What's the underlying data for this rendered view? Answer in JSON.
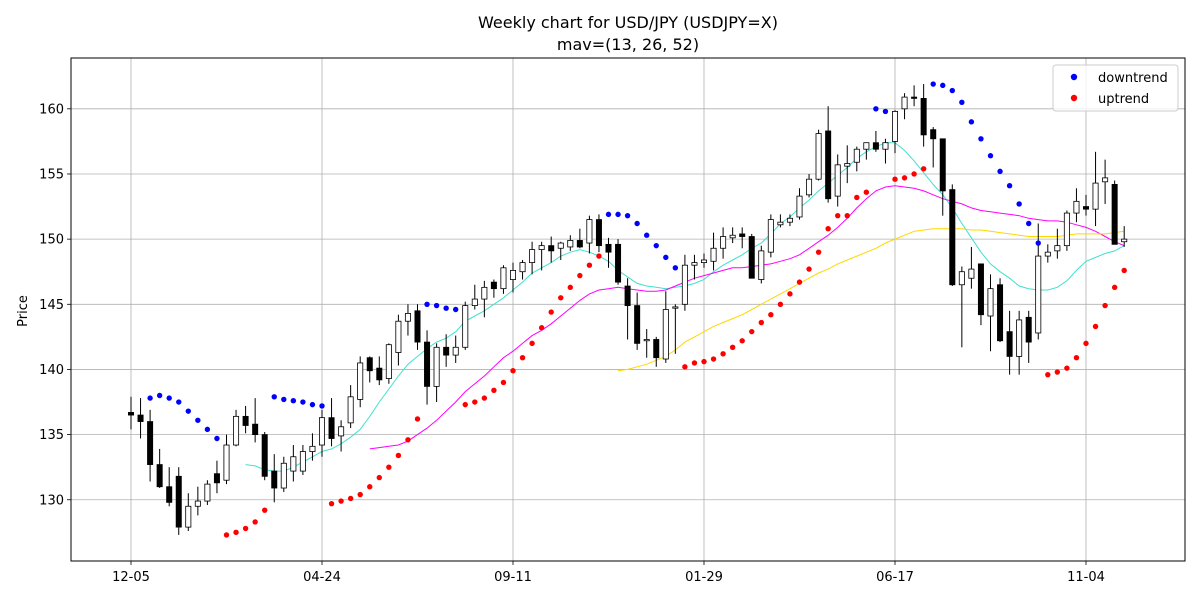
{
  "chart_data": {
    "type": "candlestick",
    "title": "Weekly chart for USD/JPY (USDJPY=X)",
    "subtitle": "mav=(13, 26, 52)",
    "ylabel": "Price",
    "ylim": [
      125.3,
      163.9
    ],
    "yticks": [
      130,
      135,
      140,
      145,
      150,
      155,
      160
    ],
    "xtick_labels": [
      "12-05",
      "04-24",
      "09-11",
      "01-29",
      "06-17",
      "11-04"
    ],
    "xtick_indices": [
      0,
      20,
      40,
      60,
      80,
      100
    ],
    "grid": true,
    "legend_position": "top-right",
    "legend": [
      {
        "label": "downtrend",
        "color": "#0000ff"
      },
      {
        "label": "uptrend",
        "color": "#ff0000"
      }
    ],
    "colors": {
      "up": "#ffffff",
      "down": "#000000",
      "mav13": "#40e0d0",
      "mav26": "#ff00ff",
      "mav52": "#ffd700"
    },
    "candles": [
      [
        136.7,
        137.9,
        135.4,
        136.5
      ],
      [
        136.5,
        137.8,
        134.7,
        136.0
      ],
      [
        136.0,
        136.9,
        131.4,
        132.7
      ],
      [
        132.7,
        133.9,
        130.9,
        131.0
      ],
      [
        131.0,
        132.5,
        129.5,
        129.8
      ],
      [
        131.8,
        132.5,
        127.3,
        127.9
      ],
      [
        127.9,
        130.5,
        127.6,
        129.5
      ],
      [
        129.5,
        131.0,
        128.8,
        129.9
      ],
      [
        129.9,
        131.5,
        129.6,
        131.2
      ],
      [
        132.0,
        133.0,
        130.5,
        131.3
      ],
      [
        131.5,
        135.0,
        131.2,
        134.2
      ],
      [
        134.2,
        136.9,
        134.1,
        136.4
      ],
      [
        136.4,
        137.2,
        135.1,
        135.7
      ],
      [
        135.8,
        137.8,
        134.4,
        135.0
      ],
      [
        135.0,
        135.2,
        131.5,
        131.8
      ],
      [
        132.2,
        133.5,
        129.8,
        130.9
      ],
      [
        130.9,
        133.3,
        130.6,
        132.8
      ],
      [
        132.2,
        134.2,
        131.4,
        133.3
      ],
      [
        132.2,
        134.2,
        131.9,
        133.7
      ],
      [
        133.7,
        135.1,
        133.0,
        134.1
      ],
      [
        134.2,
        136.9,
        133.3,
        136.3
      ],
      [
        136.3,
        137.8,
        134.1,
        134.7
      ],
      [
        134.9,
        136.1,
        133.7,
        135.6
      ],
      [
        135.9,
        138.8,
        135.5,
        137.9
      ],
      [
        137.7,
        141.0,
        137.1,
        140.5
      ],
      [
        140.9,
        141.0,
        139.0,
        139.9
      ],
      [
        140.1,
        141.0,
        138.8,
        139.2
      ],
      [
        139.3,
        142.0,
        138.9,
        141.9
      ],
      [
        141.3,
        144.2,
        140.3,
        143.7
      ],
      [
        143.7,
        145.0,
        142.6,
        144.3
      ],
      [
        144.5,
        145.0,
        141.5,
        142.1
      ],
      [
        142.1,
        143.0,
        137.3,
        138.7
      ],
      [
        138.7,
        142.0,
        137.5,
        141.7
      ],
      [
        141.7,
        142.7,
        140.2,
        141.1
      ],
      [
        141.1,
        142.6,
        140.5,
        141.7
      ],
      [
        141.7,
        145.2,
        141.5,
        144.9
      ],
      [
        144.9,
        146.5,
        144.6,
        145.4
      ],
      [
        145.4,
        146.8,
        144.0,
        146.3
      ],
      [
        146.7,
        146.9,
        145.5,
        146.2
      ],
      [
        146.2,
        148.0,
        145.8,
        147.8
      ],
      [
        146.9,
        148.2,
        145.9,
        147.6
      ],
      [
        147.5,
        148.4,
        146.9,
        148.2
      ],
      [
        148.2,
        149.8,
        147.3,
        149.2
      ],
      [
        149.2,
        149.8,
        147.6,
        149.5
      ],
      [
        149.5,
        150.2,
        148.2,
        149.1
      ],
      [
        149.3,
        149.8,
        148.4,
        149.7
      ],
      [
        149.4,
        150.3,
        149.1,
        149.9
      ],
      [
        149.9,
        150.8,
        149.3,
        149.4
      ],
      [
        149.7,
        151.8,
        148.9,
        151.5
      ],
      [
        151.5,
        151.9,
        149.0,
        149.5
      ],
      [
        149.6,
        150.1,
        147.8,
        149.0
      ],
      [
        149.6,
        150.0,
        146.5,
        146.7
      ],
      [
        146.4,
        147.0,
        142.3,
        144.9
      ],
      [
        144.9,
        145.9,
        141.5,
        142.0
      ],
      [
        142.2,
        143.1,
        140.9,
        142.3
      ],
      [
        142.3,
        142.5,
        140.2,
        140.9
      ],
      [
        140.8,
        146.0,
        140.5,
        144.6
      ],
      [
        144.7,
        145.0,
        141.2,
        144.8
      ],
      [
        145.0,
        148.8,
        144.5,
        148.0
      ],
      [
        148.0,
        148.8,
        146.9,
        148.2
      ],
      [
        148.2,
        148.9,
        147.8,
        148.4
      ],
      [
        148.3,
        150.5,
        147.6,
        149.3
      ],
      [
        149.3,
        150.9,
        148.5,
        150.2
      ],
      [
        150.1,
        150.9,
        149.7,
        150.3
      ],
      [
        150.4,
        150.9,
        149.3,
        150.2
      ],
      [
        150.2,
        150.4,
        147.0,
        147.0
      ],
      [
        146.9,
        149.5,
        146.6,
        149.1
      ],
      [
        149.0,
        151.9,
        148.6,
        151.5
      ],
      [
        151.1,
        151.9,
        150.9,
        151.3
      ],
      [
        151.3,
        151.9,
        151.0,
        151.6
      ],
      [
        151.7,
        153.9,
        151.5,
        153.3
      ],
      [
        153.4,
        155.0,
        153.2,
        154.6
      ],
      [
        154.6,
        158.4,
        154.5,
        158.1
      ],
      [
        158.3,
        160.2,
        152.8,
        153.1
      ],
      [
        153.3,
        156.5,
        152.5,
        155.7
      ],
      [
        155.6,
        157.2,
        154.3,
        155.8
      ],
      [
        155.9,
        157.1,
        155.2,
        156.9
      ],
      [
        156.9,
        157.3,
        156.1,
        157.4
      ],
      [
        157.4,
        158.3,
        156.7,
        156.9
      ],
      [
        156.9,
        157.7,
        155.8,
        157.4
      ],
      [
        157.5,
        159.9,
        156.6,
        159.8
      ],
      [
        160.0,
        161.2,
        159.2,
        160.9
      ],
      [
        160.9,
        161.8,
        160.2,
        160.8
      ],
      [
        160.8,
        161.9,
        157.1,
        158.0
      ],
      [
        158.4,
        158.6,
        155.5,
        157.7
      ],
      [
        157.7,
        157.7,
        151.8,
        153.7
      ],
      [
        153.8,
        154.2,
        146.4,
        146.5
      ],
      [
        146.5,
        147.9,
        141.7,
        147.5
      ],
      [
        147.0,
        149.4,
        146.2,
        147.7
      ],
      [
        148.1,
        148.1,
        143.4,
        144.2
      ],
      [
        144.1,
        147.3,
        141.4,
        146.2
      ],
      [
        146.5,
        147.0,
        142.1,
        142.2
      ],
      [
        142.9,
        144.5,
        139.6,
        141.0
      ],
      [
        141.0,
        144.5,
        139.6,
        143.8
      ],
      [
        144.0,
        144.5,
        140.5,
        142.1
      ],
      [
        142.8,
        151.2,
        142.3,
        148.7
      ],
      [
        148.7,
        149.6,
        148.2,
        149.0
      ],
      [
        149.1,
        150.8,
        148.5,
        149.5
      ],
      [
        149.5,
        152.2,
        149.1,
        152.0
      ],
      [
        152.0,
        153.9,
        151.3,
        152.9
      ],
      [
        152.5,
        153.4,
        151.8,
        152.3
      ],
      [
        152.3,
        156.7,
        151.0,
        154.3
      ],
      [
        154.4,
        156.1,
        152.7,
        154.7
      ],
      [
        154.2,
        154.5,
        149.6,
        149.6
      ],
      [
        149.8,
        151.0,
        149.4,
        150.0
      ]
    ],
    "mav13": [
      null,
      null,
      null,
      null,
      null,
      null,
      null,
      null,
      null,
      null,
      null,
      null,
      132.7,
      132.6,
      132.3,
      132.2,
      132.2,
      132.5,
      132.9,
      133.3,
      133.7,
      133.9,
      134.3,
      134.8,
      135.4,
      136.4,
      137.5,
      138.5,
      139.5,
      140.4,
      141.0,
      141.6,
      142.1,
      142.4,
      142.9,
      143.7,
      144.1,
      144.5,
      145.0,
      145.5,
      146.1,
      146.7,
      147.4,
      147.8,
      148.2,
      148.7,
      149.0,
      149.2,
      149.0,
      148.7,
      148.3,
      147.6,
      147.1,
      146.6,
      146.4,
      146.3,
      146.2,
      146.3,
      146.4,
      146.6,
      146.9,
      147.5,
      148.0,
      148.4,
      148.8,
      149.3,
      149.7,
      150.4,
      151.2,
      151.7,
      152.4,
      153.0,
      153.7,
      154.3,
      154.9,
      155.5,
      156.2,
      156.7,
      157.1,
      157.4,
      157.4,
      156.8,
      156.0,
      155.1,
      154.2,
      153.4,
      152.4,
      151.2,
      150.1,
      149.0,
      148.1,
      147.5,
      147.0,
      146.4,
      146.2,
      146.1,
      146.1,
      146.3,
      146.8,
      147.6,
      148.3,
      148.6,
      148.9,
      149.1,
      149.5
    ],
    "mav26": [
      null,
      null,
      null,
      null,
      null,
      null,
      null,
      null,
      null,
      null,
      null,
      null,
      null,
      null,
      null,
      null,
      null,
      null,
      null,
      null,
      null,
      null,
      null,
      null,
      null,
      133.9,
      134.0,
      134.1,
      134.2,
      134.5,
      135.0,
      135.5,
      136.1,
      136.8,
      137.5,
      138.3,
      138.9,
      139.5,
      140.2,
      140.9,
      141.4,
      142.0,
      142.6,
      143.0,
      143.5,
      144.1,
      144.7,
      145.3,
      145.8,
      146.1,
      146.2,
      146.3,
      146.2,
      146.1,
      146.0,
      146.0,
      146.1,
      146.4,
      146.7,
      147.0,
      147.2,
      147.4,
      147.6,
      147.8,
      147.8,
      147.9,
      148.0,
      148.1,
      148.3,
      148.5,
      148.8,
      149.3,
      149.8,
      150.3,
      150.9,
      151.6,
      152.4,
      153.1,
      153.7,
      154.0,
      154.1,
      154.0,
      153.9,
      153.7,
      153.4,
      153.1,
      152.9,
      152.7,
      152.4,
      152.2,
      152.1,
      152.0,
      151.9,
      151.8,
      151.6,
      151.5,
      151.4,
      151.4,
      151.3,
      151.1,
      150.9,
      150.6,
      150.2,
      149.8,
      149.5
    ],
    "mav52": [
      null,
      null,
      null,
      null,
      null,
      null,
      null,
      null,
      null,
      null,
      null,
      null,
      null,
      null,
      null,
      null,
      null,
      null,
      null,
      null,
      null,
      null,
      null,
      null,
      null,
      null,
      null,
      null,
      null,
      null,
      null,
      null,
      null,
      null,
      null,
      null,
      null,
      null,
      null,
      null,
      null,
      null,
      null,
      null,
      null,
      null,
      null,
      null,
      null,
      null,
      null,
      139.9,
      140.0,
      140.2,
      140.4,
      140.7,
      141.0,
      141.5,
      142.1,
      142.5,
      142.9,
      143.3,
      143.6,
      143.9,
      144.2,
      144.6,
      145.0,
      145.4,
      145.8,
      146.2,
      146.6,
      147.0,
      147.4,
      147.7,
      148.1,
      148.4,
      148.7,
      149.0,
      149.3,
      149.7,
      150.0,
      150.3,
      150.6,
      150.7,
      150.8,
      150.8,
      150.8,
      150.8,
      150.7,
      150.7,
      150.6,
      150.5,
      150.4,
      150.3,
      150.2,
      150.2,
      150.2,
      150.2,
      150.3,
      150.4,
      150.4,
      150.4,
      150.4,
      150.5,
      150.6
    ],
    "downtrend": [
      [
        2,
        137.8
      ],
      [
        3,
        138.0
      ],
      [
        4,
        137.8
      ],
      [
        5,
        137.5
      ],
      [
        6,
        136.8
      ],
      [
        7,
        136.1
      ],
      [
        8,
        135.4
      ],
      [
        9,
        134.7
      ],
      [
        15,
        137.9
      ],
      [
        16,
        137.7
      ],
      [
        17,
        137.6
      ],
      [
        18,
        137.5
      ],
      [
        19,
        137.3
      ],
      [
        20,
        137.2
      ],
      [
        31,
        145.0
      ],
      [
        32,
        144.9
      ],
      [
        33,
        144.7
      ],
      [
        34,
        144.6
      ],
      [
        50,
        151.9
      ],
      [
        51,
        151.9
      ],
      [
        52,
        151.8
      ],
      [
        53,
        151.2
      ],
      [
        54,
        150.3
      ],
      [
        55,
        149.5
      ],
      [
        56,
        148.6
      ],
      [
        57,
        147.8
      ],
      [
        78,
        160.0
      ],
      [
        79,
        159.8
      ],
      [
        84,
        161.9
      ],
      [
        85,
        161.8
      ],
      [
        86,
        161.4
      ],
      [
        87,
        160.5
      ],
      [
        88,
        159.0
      ],
      [
        89,
        157.7
      ],
      [
        90,
        156.4
      ],
      [
        91,
        155.2
      ],
      [
        92,
        154.1
      ],
      [
        93,
        152.7
      ],
      [
        94,
        151.2
      ],
      [
        95,
        149.7
      ]
    ],
    "uptrend": [
      [
        10,
        127.3
      ],
      [
        11,
        127.5
      ],
      [
        12,
        127.8
      ],
      [
        13,
        128.3
      ],
      [
        14,
        129.2
      ],
      [
        21,
        129.7
      ],
      [
        22,
        129.9
      ],
      [
        23,
        130.1
      ],
      [
        24,
        130.4
      ],
      [
        25,
        131.0
      ],
      [
        26,
        131.7
      ],
      [
        27,
        132.5
      ],
      [
        28,
        133.4
      ],
      [
        29,
        134.6
      ],
      [
        30,
        136.2
      ],
      [
        35,
        137.3
      ],
      [
        36,
        137.5
      ],
      [
        37,
        137.8
      ],
      [
        38,
        138.4
      ],
      [
        39,
        139.0
      ],
      [
        40,
        139.9
      ],
      [
        41,
        140.9
      ],
      [
        42,
        142.0
      ],
      [
        43,
        143.2
      ],
      [
        44,
        144.4
      ],
      [
        45,
        145.5
      ],
      [
        46,
        146.3
      ],
      [
        47,
        147.2
      ],
      [
        48,
        148.0
      ],
      [
        49,
        148.7
      ],
      [
        58,
        140.2
      ],
      [
        59,
        140.5
      ],
      [
        60,
        140.6
      ],
      [
        61,
        140.8
      ],
      [
        62,
        141.2
      ],
      [
        63,
        141.7
      ],
      [
        64,
        142.2
      ],
      [
        65,
        142.9
      ],
      [
        66,
        143.6
      ],
      [
        67,
        144.2
      ],
      [
        68,
        145.0
      ],
      [
        69,
        145.8
      ],
      [
        70,
        146.7
      ],
      [
        71,
        147.7
      ],
      [
        72,
        149.0
      ],
      [
        73,
        150.8
      ],
      [
        74,
        151.8
      ],
      [
        75,
        151.8
      ],
      [
        76,
        153.2
      ],
      [
        77,
        153.6
      ],
      [
        80,
        154.6
      ],
      [
        81,
        154.7
      ],
      [
        82,
        155.0
      ],
      [
        83,
        155.4
      ],
      [
        96,
        139.6
      ],
      [
        97,
        139.8
      ],
      [
        98,
        140.1
      ],
      [
        99,
        140.9
      ],
      [
        100,
        142.0
      ],
      [
        101,
        143.3
      ],
      [
        102,
        144.9
      ],
      [
        103,
        146.3
      ],
      [
        104,
        147.6
      ]
    ]
  }
}
